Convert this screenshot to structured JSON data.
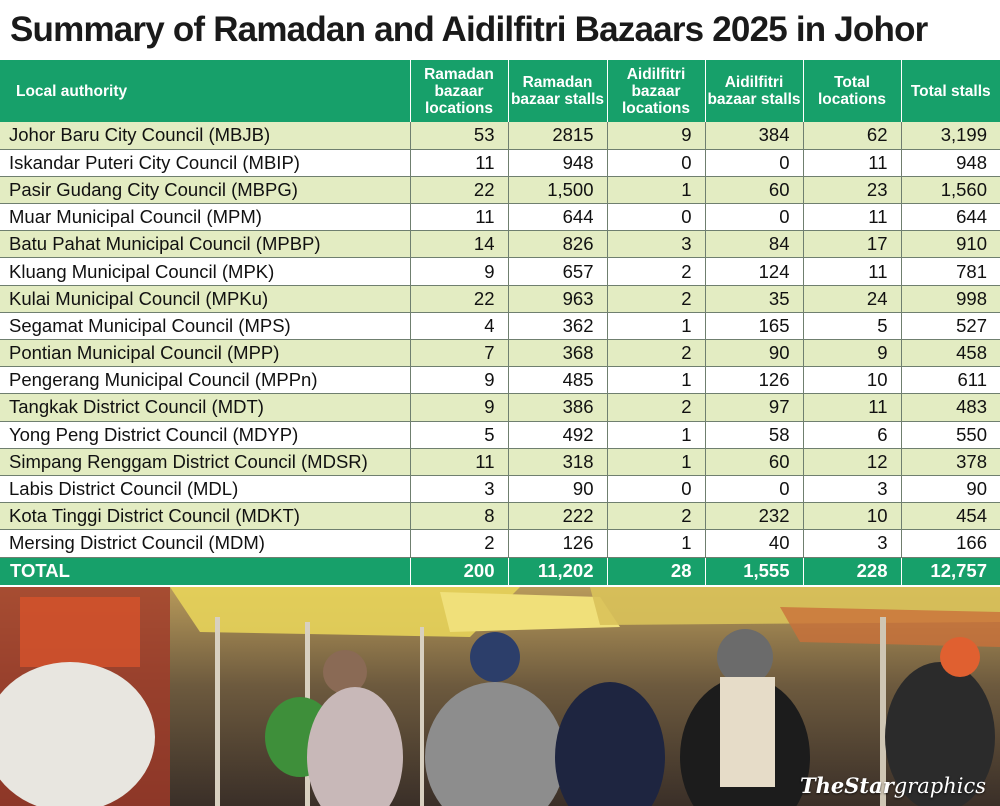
{
  "title": "Summary of Ramadan and Aidilfitri Bazaars 2025 in Johor",
  "chart_data": {
    "type": "table",
    "columns": [
      "Local authority",
      "Ramadan bazaar locations",
      "Ramadan bazaar stalls",
      "Aidilfitri bazaar locations",
      "Aidilfitri bazaar stalls",
      "Total locations",
      "Total stalls"
    ],
    "rows": [
      [
        "Johor Baru City Council (MBJB)",
        "53",
        "2815",
        "9",
        "384",
        "62",
        "3,199"
      ],
      [
        "Iskandar Puteri City Council (MBIP)",
        "11",
        "948",
        "0",
        "0",
        "11",
        "948"
      ],
      [
        "Pasir Gudang City Council (MBPG)",
        "22",
        "1,500",
        "1",
        "60",
        "23",
        "1,560"
      ],
      [
        "Muar Municipal Council (MPM)",
        "11",
        "644",
        "0",
        "0",
        "11",
        "644"
      ],
      [
        "Batu Pahat Municipal Council (MPBP)",
        "14",
        "826",
        "3",
        "84",
        "17",
        "910"
      ],
      [
        "Kluang Municipal Council (MPK)",
        "9",
        "657",
        "2",
        "124",
        "11",
        "781"
      ],
      [
        "Kulai Municipal Council (MPKu)",
        "22",
        "963",
        "2",
        "35",
        "24",
        "998"
      ],
      [
        "Segamat Municipal Council (MPS)",
        "4",
        "362",
        "1",
        "165",
        "5",
        "527"
      ],
      [
        "Pontian Municipal Council (MPP)",
        "7",
        "368",
        "2",
        "90",
        "9",
        "458"
      ],
      [
        "Pengerang Municipal Council (MPPn)",
        "9",
        "485",
        "1",
        "126",
        "10",
        "611"
      ],
      [
        "Tangkak District Council (MDT)",
        "9",
        "386",
        "2",
        "97",
        "11",
        "483"
      ],
      [
        "Yong Peng District Council (MDYP)",
        "5",
        "492",
        "1",
        "58",
        "6",
        "550"
      ],
      [
        "Simpang Renggam District Council (MDSR)",
        "11",
        "318",
        "1",
        "60",
        "12",
        "378"
      ],
      [
        "Labis District Council (MDL)",
        "3",
        "90",
        "0",
        "0",
        "3",
        "90"
      ],
      [
        "Kota Tinggi District Council (MDKT)",
        "8",
        "222",
        "2",
        "232",
        "10",
        "454"
      ],
      [
        "Mersing District Council (MDM)",
        "2",
        "126",
        "1",
        "40",
        "3",
        "166"
      ]
    ],
    "total": [
      "TOTAL",
      "200",
      "11,202",
      "28",
      "1,555",
      "228",
      "12,757"
    ]
  },
  "credit": {
    "brand": "TheStar",
    "suffix": "graphics"
  },
  "colors": {
    "header_green": "#17a06a",
    "row_tint": "#e3ecc2"
  }
}
